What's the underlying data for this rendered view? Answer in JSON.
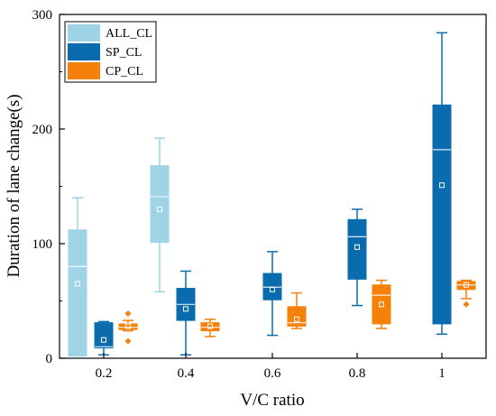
{
  "chart_data": {
    "type": "box",
    "xlabel": "V/C ratio",
    "ylabel": "Duration of lane change(s)",
    "categories": [
      "0.2",
      "0.4",
      "0.6",
      "0.8",
      "1"
    ],
    "ylim": [
      0,
      300
    ],
    "yticks": [
      "0",
      "100",
      "200",
      "300"
    ],
    "legend_position": "top-left",
    "grid": false,
    "series": [
      {
        "name": "ALL_CL",
        "color": "#9fd3e6",
        "boxes": [
          {
            "min": 2,
            "q1": 2,
            "median": 80,
            "q3": 112,
            "max": 140,
            "mean": 65,
            "outliers": []
          },
          {
            "min": 58,
            "q1": 101,
            "median": 141,
            "q3": 168,
            "max": 192,
            "mean": 130,
            "outliers": []
          },
          null,
          null,
          null
        ]
      },
      {
        "name": "SP_CL",
        "color": "#0a6cad",
        "boxes": [
          {
            "min": 3,
            "q1": 9,
            "median": 10,
            "q3": 31,
            "max": 32,
            "mean": 16,
            "outliers": []
          },
          {
            "min": 3,
            "q1": 33,
            "median": 47,
            "q3": 61,
            "max": 76,
            "mean": 43,
            "outliers": []
          },
          {
            "min": 20,
            "q1": 51,
            "median": 62,
            "q3": 74,
            "max": 93,
            "mean": 60,
            "outliers": []
          },
          {
            "min": 46,
            "q1": 69,
            "median": 106,
            "q3": 121,
            "max": 130,
            "mean": 97,
            "outliers": []
          },
          {
            "min": 21,
            "q1": 30,
            "median": 182,
            "q3": 221,
            "max": 284,
            "mean": 151,
            "outliers": []
          }
        ]
      },
      {
        "name": "CP_CL",
        "color": "#f5800a",
        "boxes": [
          {
            "min": 24,
            "q1": 25,
            "median": 27,
            "q3": 30,
            "max": 33,
            "mean": 28,
            "outliers": [
              15,
              39
            ]
          },
          {
            "min": 19,
            "q1": 24,
            "median": 27,
            "q3": 31,
            "max": 34,
            "mean": 28,
            "outliers": []
          },
          {
            "min": 26,
            "q1": 28,
            "median": 31,
            "q3": 45,
            "max": 57,
            "mean": 34,
            "outliers": []
          },
          {
            "min": 26,
            "q1": 30,
            "median": 55,
            "q3": 64,
            "max": 68,
            "mean": 47,
            "outliers": []
          },
          {
            "min": 52,
            "q1": 60,
            "median": 64,
            "q3": 67,
            "max": 68,
            "mean": 64,
            "outliers": [
              47
            ]
          }
        ]
      }
    ]
  }
}
